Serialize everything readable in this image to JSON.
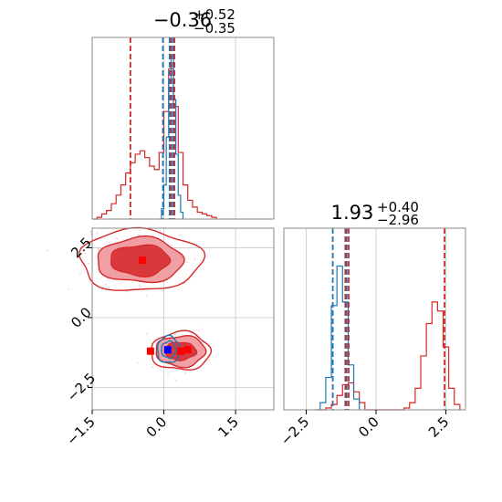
{
  "colors": {
    "red": "#d62728",
    "blue": "#1f77b4",
    "red_fill_light": "#f0a0a4",
    "red_fill_dark": "#d9383c",
    "grid": "#c8c8c8",
    "spine": "#888888",
    "scatter_pink": "#ffc0cb",
    "marker_red": "#ff0000",
    "marker_blue": "#0000ff"
  },
  "titles": {
    "param1": {
      "value": "−0.36",
      "plus": "+0.52",
      "minus": "−0.35"
    },
    "param2": {
      "value": "1.93",
      "plus": "+0.40",
      "minus": "−2.96"
    }
  },
  "chart_data": [
    {
      "type": "histogram",
      "panel": "param1-marginal",
      "xlim": [
        -1.5,
        2.3
      ],
      "grid": true,
      "series": [
        {
          "color": "red",
          "x": [
            -1.5,
            -1.4,
            -1.3,
            -1.2,
            -1.1,
            -1.0,
            -0.9,
            -0.8,
            -0.7,
            -0.6,
            -0.5,
            -0.4,
            -0.3,
            -0.2,
            -0.1,
            0.0,
            0.1,
            0.2,
            0.3,
            0.4,
            0.5,
            0.6,
            0.7,
            0.8,
            0.9,
            1.0,
            1.1
          ],
          "y": [
            0.0,
            0.01,
            0.03,
            0.05,
            0.09,
            0.14,
            0.2,
            0.27,
            0.33,
            0.38,
            0.4,
            0.36,
            0.31,
            0.29,
            0.39,
            0.63,
            0.88,
            0.66,
            0.39,
            0.2,
            0.11,
            0.07,
            0.04,
            0.03,
            0.02,
            0.01,
            0.0
          ]
        },
        {
          "color": "blue",
          "x": [
            -0.1,
            -0.05,
            0.0,
            0.05,
            0.1,
            0.15,
            0.2,
            0.25,
            0.3,
            0.35,
            0.4
          ],
          "y": [
            0.0,
            0.06,
            0.2,
            0.48,
            0.82,
            0.95,
            0.7,
            0.38,
            0.14,
            0.04,
            0.0
          ]
        }
      ],
      "vlines": [
        {
          "x": -0.7,
          "color": "red"
        },
        {
          "x": 0.15,
          "color": "red"
        },
        {
          "x": 0.22,
          "color": "red"
        },
        {
          "x": -0.02,
          "color": "blue"
        },
        {
          "x": 0.12,
          "color": "blue"
        },
        {
          "x": 0.19,
          "color": "blue"
        }
      ]
    },
    {
      "type": "contour",
      "panel": "joint",
      "xlim": [
        -1.5,
        2.3
      ],
      "ylim": [
        -3.3,
        3.2
      ],
      "xticks": [
        "−1.5",
        "0.0",
        "1.5"
      ],
      "xtick_values": [
        -1.5,
        0.0,
        1.5
      ],
      "yticks": [
        "2.5",
        "0.0",
        "−2.5"
      ],
      "ytick_values": [
        2.5,
        0.0,
        -2.5
      ],
      "grid": true,
      "red_modes": [
        {
          "cx": -0.5,
          "cy": 2.05,
          "rx": [
            0.62,
            0.9,
            1.28
          ],
          "ry": [
            0.55,
            0.8,
            1.1
          ]
        },
        {
          "cx": 0.35,
          "cy": -1.2,
          "rx": [
            0.32,
            0.52,
            0.62
          ],
          "ry": [
            0.32,
            0.55,
            0.68
          ]
        }
      ],
      "blue_mode": {
        "cx": 0.1,
        "cy": -1.15,
        "rx": [
          0.15,
          0.24
        ],
        "ry": [
          0.3,
          0.48
        ]
      },
      "red_markers": [
        {
          "x": -0.45,
          "y": 2.05
        },
        {
          "x": -0.28,
          "y": -1.2
        },
        {
          "x": 0.35,
          "y": -1.2
        },
        {
          "x": 0.5,
          "y": -1.15
        }
      ],
      "blue_marker": {
        "x": 0.08,
        "y": -1.15
      }
    },
    {
      "type": "histogram",
      "panel": "param2-marginal",
      "xlim": [
        -3.3,
        3.2
      ],
      "xticks": [
        "−2.5",
        "0.0",
        "2.5"
      ],
      "xtick_values": [
        -2.5,
        0.0,
        2.5
      ],
      "grid": true,
      "series": [
        {
          "color": "red",
          "x": [
            -2.0,
            -1.8,
            -1.6,
            -1.4,
            -1.2,
            -1.0,
            -0.8,
            -0.6,
            -0.4,
            0.8,
            1.0,
            1.2,
            1.4,
            1.6,
            1.8,
            2.0,
            2.2,
            2.4,
            2.6,
            2.8,
            3.0
          ],
          "y": [
            0.0,
            0.01,
            0.03,
            0.08,
            0.14,
            0.15,
            0.1,
            0.04,
            0.0,
            0.0,
            0.01,
            0.04,
            0.12,
            0.3,
            0.48,
            0.6,
            0.55,
            0.35,
            0.12,
            0.03,
            0.0
          ]
        },
        {
          "color": "blue",
          "x": [
            -2.2,
            -2.0,
            -1.8,
            -1.6,
            -1.4,
            -1.2,
            -1.0,
            -0.8,
            -0.6
          ],
          "y": [
            0.0,
            0.04,
            0.18,
            0.58,
            0.8,
            0.6,
            0.25,
            0.06,
            0.0
          ]
        }
      ],
      "vlines": [
        {
          "x": -1.1,
          "color": "red"
        },
        {
          "x": -0.98,
          "color": "red"
        },
        {
          "x": 2.45,
          "color": "red"
        },
        {
          "x": -1.55,
          "color": "blue"
        },
        {
          "x": -1.05,
          "color": "blue"
        }
      ]
    }
  ]
}
